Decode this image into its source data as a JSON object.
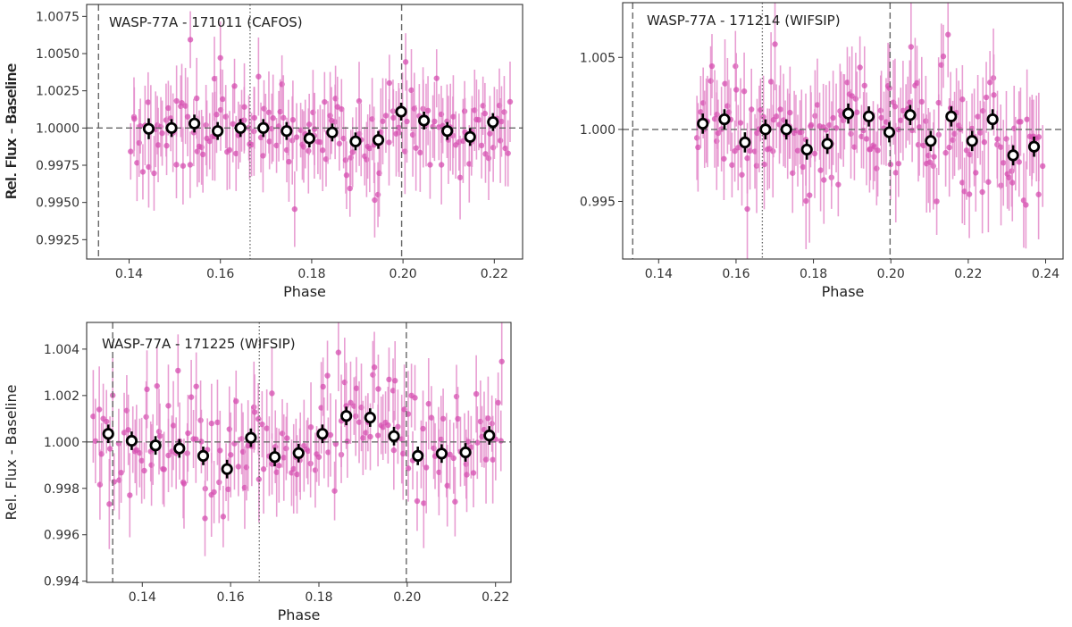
{
  "figure": {
    "colors": {
      "raw_points": "#d64fb0",
      "raw_errorbars": "#e48ccb",
      "binned_edge": "#000000",
      "binned_face": "#ffffff",
      "reference_lines": "#666666",
      "axes": "#333333"
    }
  },
  "chart_data": [
    {
      "type": "scatter",
      "title": "WASP-77A - 171011 (CAFOS)",
      "xlabel": "Phase",
      "ylabel": "Rel. Flux - Baseline",
      "xlim": [
        0.1307,
        0.2262
      ],
      "ylim": [
        0.9912,
        1.0083
      ],
      "xticks": [
        0.14,
        0.16,
        0.18,
        0.2,
        0.22
      ],
      "xtick_labels": [
        "0.14",
        "0.16",
        "0.18",
        "0.20",
        "0.22"
      ],
      "yticks": [
        0.9925,
        0.995,
        0.9975,
        1.0,
        1.0025,
        1.005,
        1.0075
      ],
      "ytick_labels": [
        "0.9925",
        "0.9950",
        "0.9975",
        "1.0000",
        "1.0025",
        "1.0050",
        "1.0075"
      ],
      "baseline_y": 1.0,
      "dashed_x": [
        0.1333,
        0.1997
      ],
      "dotted_x": [
        0.1665
      ],
      "raw_range": [
        0.1405,
        0.2235
      ],
      "raw_sigma": 0.0016,
      "raw_err": 0.0024,
      "raw_seed": 11,
      "binned": {
        "x": [
          0.1443,
          0.1493,
          0.1543,
          0.1594,
          0.1644,
          0.1694,
          0.1745,
          0.1795,
          0.1845,
          0.1896,
          0.1946,
          0.1996,
          0.2046,
          0.2097,
          0.2147,
          0.2197
        ],
        "y": [
          0.99995,
          1.0,
          1.0003,
          0.9998,
          1.0,
          1.0,
          0.9998,
          0.9993,
          0.9997,
          0.9991,
          0.9992,
          1.0011,
          1.0005,
          0.9998,
          0.9994,
          1.0004
        ],
        "err": [
          0.0007,
          0.0006,
          0.0006,
          0.0006,
          0.0006,
          0.0006,
          0.0006,
          0.0006,
          0.0006,
          0.0006,
          0.0006,
          0.0006,
          0.0006,
          0.0006,
          0.0006,
          0.0006
        ]
      }
    },
    {
      "type": "scatter",
      "title": "WASP-77A - 171214 (WIFSIP)",
      "xlabel": "Phase",
      "ylabel": "Rel. Flux - Baseline",
      "xlim": [
        0.1307,
        0.2445
      ],
      "ylim": [
        0.991,
        1.0088
      ],
      "xticks": [
        0.14,
        0.16,
        0.18,
        0.2,
        0.22,
        0.24
      ],
      "xtick_labels": [
        "0.14",
        "0.16",
        "0.18",
        "0.20",
        "0.22",
        "0.24"
      ],
      "yticks": [
        0.995,
        1.0,
        1.005
      ],
      "ytick_labels": [
        "0.995",
        "1.000",
        "1.005"
      ],
      "baseline_y": 1.0,
      "dashed_x": [
        0.1333,
        0.1998
      ],
      "dotted_x": [
        0.1668
      ],
      "raw_range": [
        0.15,
        0.239
      ],
      "raw_sigma": 0.002,
      "raw_err": 0.0028,
      "raw_seed": 214,
      "binned": {
        "x": [
          0.1514,
          0.157,
          0.1623,
          0.1676,
          0.173,
          0.1783,
          0.1836,
          0.189,
          0.1943,
          0.1996,
          0.205,
          0.2103,
          0.2156,
          0.221,
          0.2263,
          0.2316,
          0.237
        ],
        "y": [
          1.0004,
          1.0007,
          0.9991,
          1.0,
          1.0,
          0.9986,
          0.999,
          1.0011,
          1.0009,
          0.9998,
          1.001,
          0.9992,
          1.0009,
          0.9992,
          1.0007,
          0.9982,
          0.9988
        ],
        "err": [
          0.0007,
          0.0007,
          0.0007,
          0.0007,
          0.0007,
          0.0007,
          0.0007,
          0.0007,
          0.0007,
          0.0007,
          0.0007,
          0.0007,
          0.0007,
          0.0007,
          0.0007,
          0.0007,
          0.0007
        ]
      }
    },
    {
      "type": "scatter",
      "title": "WASP-77A - 171225 (WIFSIP)",
      "xlabel": "Phase",
      "ylabel": "Rel. Flux - Baseline",
      "xlim": [
        0.1274,
        0.2235
      ],
      "ylim": [
        0.99395,
        1.00515
      ],
      "xticks": [
        0.14,
        0.16,
        0.18,
        0.2,
        0.22
      ],
      "xtick_labels": [
        "0.14",
        "0.16",
        "0.18",
        "0.20",
        "0.22"
      ],
      "yticks": [
        0.994,
        0.996,
        0.998,
        1.0,
        1.002,
        1.004
      ],
      "ytick_labels": [
        "0.994",
        "0.996",
        "0.998",
        "1.000",
        "1.002",
        "1.004"
      ],
      "baseline_y": 1.0,
      "dashed_x": [
        0.1333,
        0.1998
      ],
      "dotted_x": [
        0.1665
      ],
      "raw_range": [
        0.129,
        0.2215
      ],
      "raw_sigma": 0.0012,
      "raw_err": 0.0016,
      "raw_seed": 225,
      "binned": {
        "x": [
          0.1323,
          0.1376,
          0.143,
          0.1484,
          0.1538,
          0.1592,
          0.1646,
          0.17,
          0.1754,
          0.1808,
          0.1862,
          0.1916,
          0.197,
          0.2024,
          0.2078,
          0.2132,
          0.2186
        ],
        "y": [
          1.00035,
          1.00005,
          0.99985,
          0.99972,
          0.9994,
          0.99883,
          1.00018,
          0.99935,
          0.99952,
          1.00035,
          1.00112,
          1.00105,
          1.00025,
          0.9994,
          0.9995,
          0.99955,
          1.00028
        ],
        "err": [
          0.0004,
          0.0004,
          0.0004,
          0.0004,
          0.0004,
          0.0004,
          0.0004,
          0.0004,
          0.0004,
          0.0004,
          0.0004,
          0.0004,
          0.0004,
          0.0004,
          0.0004,
          0.0004,
          0.0004
        ]
      }
    }
  ]
}
